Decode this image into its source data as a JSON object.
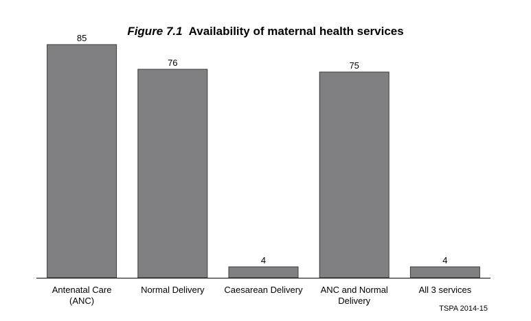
{
  "figure": {
    "label": "Figure 7.1",
    "title": "Availability of maternal health services"
  },
  "source": "TSPA 2014-15",
  "colors": {
    "bar_fill": "#808083",
    "bar_stroke": "#3a3a3a",
    "axis": "#000000"
  },
  "chart_data": {
    "type": "bar",
    "title": "Availability of maternal health services",
    "categories": [
      [
        "Antenatal Care",
        "(ANC)"
      ],
      [
        "Normal Delivery"
      ],
      [
        "Caesarean Delivery"
      ],
      [
        "ANC and Normal",
        "Delivery"
      ],
      [
        "All 3 services"
      ]
    ],
    "values": [
      85,
      76,
      4,
      75,
      4
    ],
    "data_labels": [
      "85",
      "76",
      "4",
      "75",
      "4"
    ],
    "ylim": [
      0,
      100
    ],
    "grid": false,
    "legend": "none"
  }
}
